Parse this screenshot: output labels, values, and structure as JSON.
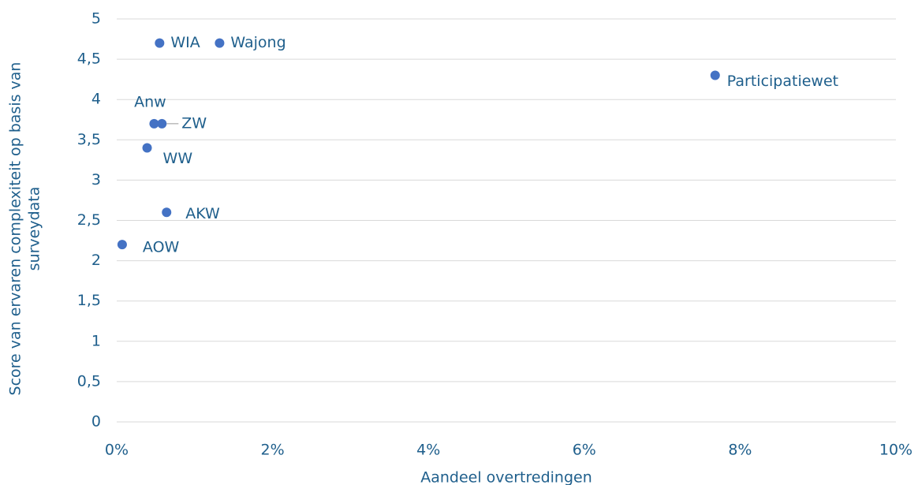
{
  "chart_data": {
    "type": "scatter",
    "xlabel": "Aandeel overtredingen",
    "ylabel": [
      "Score van ervaren complexiteit op basis van",
      "surveydata"
    ],
    "labels": [
      "WIA",
      "Wajong",
      "Participatiewet",
      "Anw",
      "ZW",
      "WW",
      "AKW",
      "AOW"
    ],
    "x": [
      0.55,
      1.32,
      7.68,
      0.48,
      0.58,
      0.39,
      0.64,
      0.07
    ],
    "values": [
      4.7,
      4.7,
      4.3,
      3.7,
      3.7,
      3.4,
      2.6,
      2.2
    ],
    "color": "#4472c4",
    "xlim": [
      0,
      10
    ],
    "xticks": [
      {
        "value": 0,
        "label": "0%"
      },
      {
        "value": 2,
        "label": "2%"
      },
      {
        "value": 4,
        "label": "4%"
      },
      {
        "value": 6,
        "label": "6%"
      },
      {
        "value": 8,
        "label": "8%"
      },
      {
        "value": 10,
        "label": "10%"
      }
    ],
    "ylim": [
      0,
      5
    ],
    "yticks": [
      0,
      {
        "value": 0.5,
        "label": "0,5"
      },
      1,
      {
        "value": 1.5,
        "label": "1,5"
      },
      2,
      {
        "value": 2.5,
        "label": "2,5"
      },
      3,
      {
        "value": 3.5,
        "label": "3,5"
      },
      4,
      {
        "value": 4.5,
        "label": "4,5"
      },
      5
    ],
    "grid": true
  }
}
